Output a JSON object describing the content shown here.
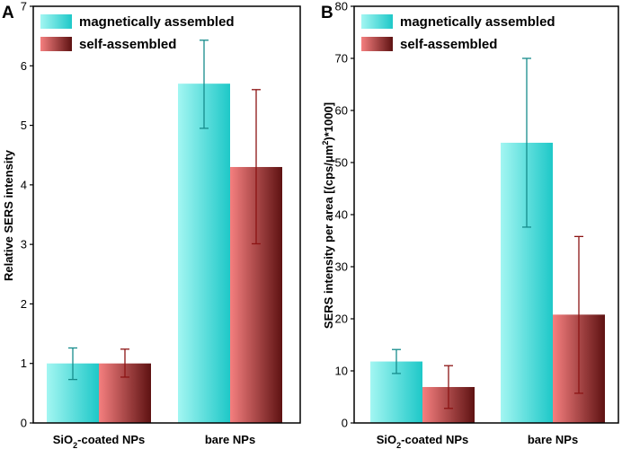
{
  "chart_data": [
    {
      "panel": "A",
      "type": "bar",
      "ylabel": "Relative SERS intensity",
      "ylim": [
        0,
        7
      ],
      "yticks": [
        0,
        1,
        2,
        3,
        4,
        5,
        6,
        7
      ],
      "categories": [
        {
          "pre": "SiO",
          "sub": "2",
          "post": "-coated NPs"
        },
        {
          "pre": "bare NPs",
          "sub": "",
          "post": ""
        }
      ],
      "series": [
        {
          "name": "magnetically assembled",
          "values": [
            1.0,
            5.7
          ],
          "err_low": [
            0.73,
            4.95
          ],
          "err_high": [
            1.26,
            6.43
          ]
        },
        {
          "name": "self-assembled",
          "values": [
            1.0,
            4.3
          ],
          "err_low": [
            0.77,
            3.01
          ],
          "err_high": [
            1.24,
            5.6
          ]
        }
      ]
    },
    {
      "panel": "B",
      "type": "bar",
      "ylabel": {
        "pre": "SERS intensity per area [(cps/μm",
        "sup": "2",
        "post": ")*1000]"
      },
      "ylim": [
        0,
        80
      ],
      "yticks": [
        0,
        10,
        20,
        30,
        40,
        50,
        60,
        70,
        80
      ],
      "categories": [
        {
          "pre": "SiO",
          "sub": "2",
          "post": "-coated NPs"
        },
        {
          "pre": "bare NPs",
          "sub": "",
          "post": ""
        }
      ],
      "series": [
        {
          "name": "magnetically assembled",
          "values": [
            11.8,
            53.8
          ],
          "err_low": [
            9.5,
            37.6
          ],
          "err_high": [
            14.1,
            70.0
          ]
        },
        {
          "name": "self-assembled",
          "values": [
            6.9,
            20.8
          ],
          "err_low": [
            2.8,
            5.7
          ],
          "err_high": [
            11.0,
            35.8
          ]
        }
      ]
    }
  ],
  "colors": {
    "mag_light": "#a3f6f2",
    "mag_dark": "#1ec8c8",
    "mag_err": "#168c8c",
    "self_light": "#f57f7f",
    "self_dark": "#5e1212",
    "self_err": "#8c1414"
  }
}
